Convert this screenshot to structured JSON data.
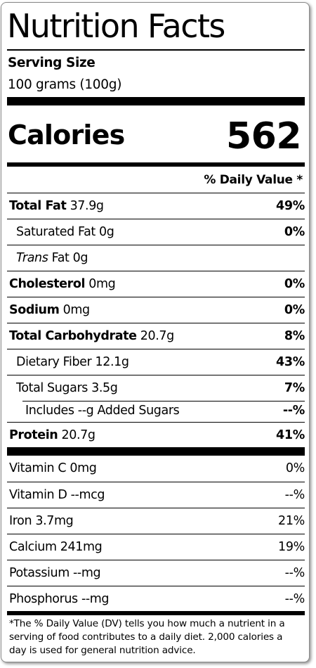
{
  "title": "Nutrition Facts",
  "serving": {
    "label": "Serving Size",
    "value": "100 grams (100g)"
  },
  "calories": {
    "label": "Calories",
    "value": "562"
  },
  "dv_header": "% Daily Value *",
  "nutrients": [
    {
      "name": "Total Fat",
      "amount": " 37.9g",
      "pct": "49%"
    },
    {
      "name": "Saturated Fat 0g",
      "pct": "0%"
    },
    {
      "name_italic": "Trans",
      "name": " Fat 0g",
      "pct": ""
    },
    {
      "name": "Cholesterol",
      "amount": " 0mg",
      "pct": "0%"
    },
    {
      "name": "Sodium",
      "amount": " 0mg",
      "pct": "0%"
    },
    {
      "name": "Total Carbohydrate",
      "amount": " 20.7g",
      "pct": "8%"
    },
    {
      "name": "Dietary Fiber 12.1g",
      "pct": "43%"
    },
    {
      "name": "Total Sugars 3.5g",
      "pct": "7%"
    },
    {
      "name": "Includes --g Added Sugars",
      "pct": "--%"
    },
    {
      "name": "Protein",
      "amount": " 20.7g",
      "pct": "41%"
    }
  ],
  "vitamins": [
    {
      "name": "Vitamin C 0mg",
      "pct": "0%"
    },
    {
      "name": "Vitamin D --mcg",
      "pct": "--%"
    },
    {
      "name": "Iron 3.7mg",
      "pct": "21%"
    },
    {
      "name": "Calcium 241mg",
      "pct": "19%"
    },
    {
      "name": "Potassium --mg",
      "pct": "--%"
    },
    {
      "name": "Phosphorus --mg",
      "pct": "--%"
    }
  ],
  "footnote": "*The % Daily Value (DV) tells you how much a nutrient in a serving of food contributes to a daily diet. 2,000 calories a day is used for general nutrition advice."
}
